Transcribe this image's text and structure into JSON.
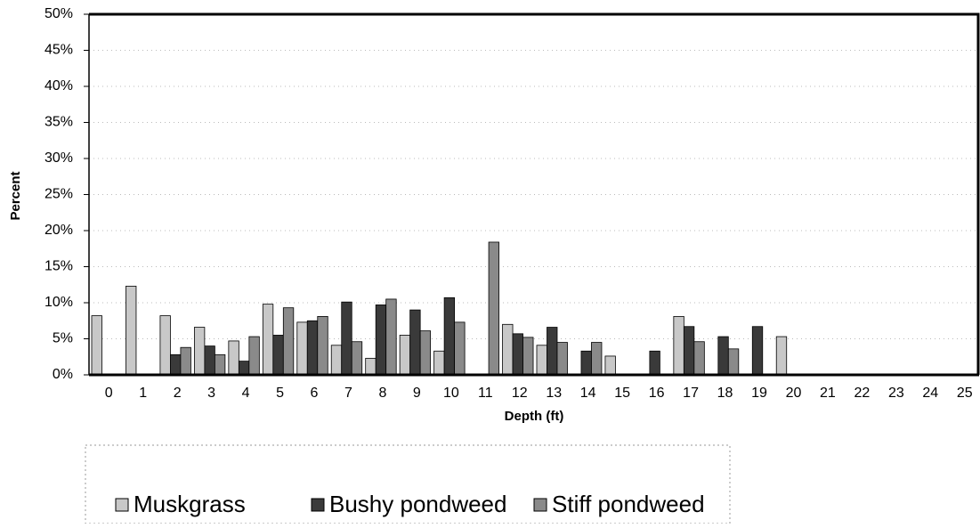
{
  "chart_data": {
    "type": "bar",
    "xlabel": "Depth (ft)",
    "ylabel": "Percent",
    "categories": [
      "0",
      "1",
      "2",
      "3",
      "4",
      "5",
      "6",
      "7",
      "8",
      "9",
      "10",
      "11",
      "12",
      "13",
      "14",
      "15",
      "16",
      "17",
      "18",
      "19",
      "20",
      "21",
      "22",
      "23",
      "24",
      "25"
    ],
    "series": [
      {
        "name": "Muskgrass",
        "color": "#c8c8c8",
        "values": [
          8.2,
          12.3,
          8.2,
          6.6,
          4.7,
          9.8,
          7.3,
          4.1,
          2.3,
          5.5,
          3.3,
          0,
          7.0,
          4.1,
          0,
          2.6,
          0,
          8.1,
          0,
          0,
          5.3,
          0,
          0,
          0,
          0,
          0
        ]
      },
      {
        "name": "Bushy pondweed",
        "color": "#3a3a3a",
        "values": [
          0,
          0,
          2.8,
          4.0,
          1.9,
          5.5,
          7.5,
          10.1,
          9.7,
          9.0,
          10.7,
          0,
          5.7,
          6.6,
          3.3,
          0,
          3.3,
          6.7,
          5.3,
          6.7,
          0,
          0,
          0,
          0,
          0,
          0
        ]
      },
      {
        "name": "Stiff pondweed",
        "color": "#8a8a8a",
        "values": [
          0,
          0,
          3.8,
          2.8,
          5.3,
          9.3,
          8.1,
          4.6,
          10.5,
          6.1,
          7.3,
          18.4,
          5.2,
          4.5,
          4.5,
          0,
          0,
          4.6,
          3.6,
          0,
          0,
          0,
          0,
          0,
          0,
          0
        ]
      }
    ],
    "ylim": [
      0,
      50
    ],
    "yticks": [
      {
        "value": 0,
        "label": "0%"
      },
      {
        "value": 5,
        "label": "5%"
      },
      {
        "value": 10,
        "label": "10%"
      },
      {
        "value": 15,
        "label": "15%"
      },
      {
        "value": 20,
        "label": "20%"
      },
      {
        "value": 25,
        "label": "25%"
      },
      {
        "value": 30,
        "label": "30%"
      },
      {
        "value": 35,
        "label": "35%"
      },
      {
        "value": 40,
        "label": "40%"
      },
      {
        "value": 45,
        "label": "45%"
      },
      {
        "value": 50,
        "label": "50%"
      }
    ],
    "grid": true
  }
}
